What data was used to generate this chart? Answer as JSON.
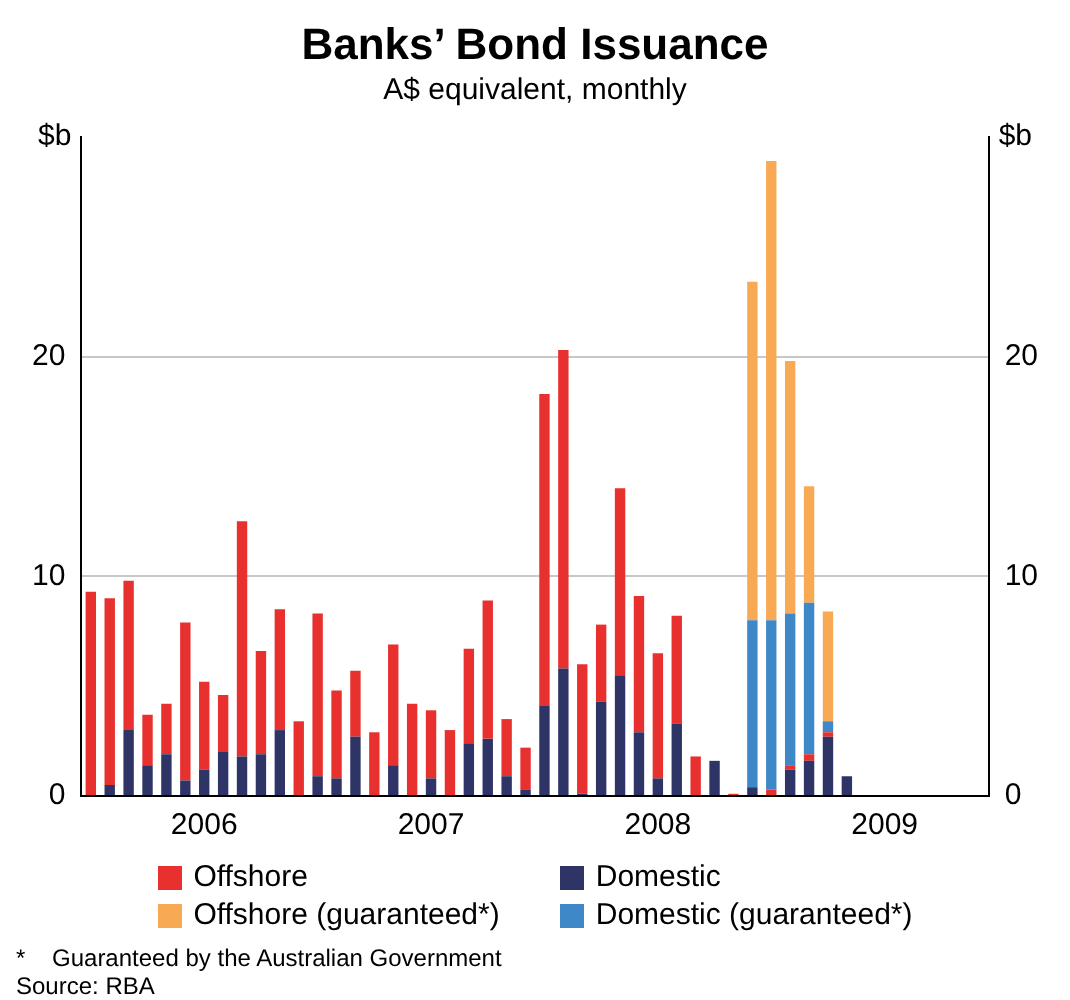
{
  "chart_data": {
    "type": "bar",
    "title": "Banks’ Bond Issuance",
    "subtitle": "A$ equivalent, monthly",
    "ylabel": "$b",
    "y2label": "$b",
    "categories": [
      null,
      null,
      null,
      null,
      null,
      null,
      "2006",
      null,
      null,
      null,
      null,
      null,
      null,
      null,
      null,
      null,
      null,
      null,
      "2007",
      null,
      null,
      null,
      null,
      null,
      null,
      null,
      null,
      null,
      null,
      null,
      "2008",
      null,
      null,
      null,
      null,
      null,
      null,
      null,
      null,
      null,
      null,
      null,
      "2009",
      null,
      null,
      null,
      null,
      null
    ],
    "stacked": true,
    "legend": "bottom",
    "grid": "y",
    "ylim": [
      0,
      30
    ],
    "yticks": [
      0,
      10,
      20
    ],
    "y2lim": [
      0,
      30
    ],
    "y2ticks": [
      0,
      10,
      20
    ],
    "series": [
      {
        "name": "Domestic",
        "color": "#2e3466",
        "values": [
          0,
          0.5,
          3.0,
          1.4,
          1.9,
          0.7,
          1.2,
          2.0,
          1.8,
          1.9,
          3.0,
          0,
          0.9,
          0.8,
          2.7,
          0,
          1.4,
          0,
          0.8,
          0,
          2.4,
          2.6,
          0.9,
          0.3,
          4.1,
          5.8,
          0.1,
          4.3,
          5.5,
          2.9,
          0.8,
          3.3,
          0,
          1.6,
          0,
          0.4,
          0,
          1.2,
          1.6,
          2.7,
          0.9,
          null,
          null,
          null,
          null,
          null,
          null,
          null
        ]
      },
      {
        "name": "Offshore",
        "color": "#e8312f",
        "values": [
          9.3,
          8.5,
          6.8,
          2.3,
          2.3,
          7.2,
          4.0,
          2.6,
          10.7,
          4.7,
          5.5,
          3.4,
          7.4,
          4.0,
          3.0,
          2.9,
          5.5,
          4.2,
          3.1,
          3.0,
          4.3,
          6.3,
          2.6,
          1.9,
          14.2,
          14.5,
          5.9,
          3.5,
          8.5,
          6.2,
          5.7,
          4.9,
          1.8,
          0,
          0.1,
          0,
          0.3,
          0.2,
          0.3,
          0.2,
          0,
          null,
          null,
          null,
          null,
          null,
          null,
          null
        ]
      },
      {
        "name": "Domestic (guaranteed*)",
        "color": "#3f88c8",
        "values": [
          null,
          null,
          null,
          null,
          null,
          null,
          null,
          null,
          null,
          null,
          null,
          null,
          null,
          null,
          null,
          null,
          null,
          null,
          null,
          null,
          null,
          null,
          null,
          null,
          null,
          null,
          null,
          null,
          null,
          null,
          null,
          null,
          null,
          null,
          null,
          7.6,
          7.7,
          6.9,
          6.9,
          0.5,
          null,
          null,
          null,
          null,
          null,
          null,
          null,
          null
        ]
      },
      {
        "name": "Offshore (guaranteed*)",
        "color": "#f8a953",
        "values": [
          null,
          null,
          null,
          null,
          null,
          null,
          null,
          null,
          null,
          null,
          null,
          null,
          null,
          null,
          null,
          null,
          null,
          null,
          null,
          null,
          null,
          null,
          null,
          null,
          null,
          null,
          null,
          null,
          null,
          null,
          null,
          null,
          null,
          null,
          null,
          15.4,
          20.9,
          11.5,
          5.3,
          5.0,
          null,
          null,
          null,
          null,
          null,
          null,
          null,
          null
        ]
      }
    ],
    "annotations": [
      "*    Guaranteed by the Australian Government",
      "Source: RBA"
    ]
  }
}
